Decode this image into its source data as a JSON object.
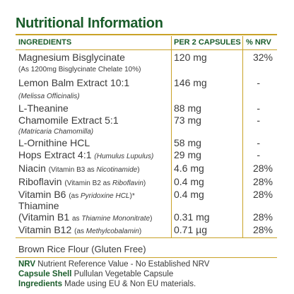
{
  "title": "Nutritional Information",
  "header": {
    "ingredients": "INGREDIENTS",
    "per": "PER 2 CAPSULES",
    "nrv": "% NRV"
  },
  "rows": [
    {
      "name": "Magnesium Bisglycinate",
      "sub": "(As 1200mg Bisglycinate Chelate 10%)",
      "amount": "120 mg",
      "nrv": "32%"
    },
    {
      "name": "Lemon Balm Extract 10:1",
      "sub": "(Melissa Officinalis)",
      "amount": "146 mg",
      "nrv": "-"
    },
    {
      "name": "L-Theanine",
      "amount": "88 mg",
      "nrv": "-"
    },
    {
      "name": "Chamomile Extract 5:1",
      "sub": "(Matricaria Chamomilla)",
      "amount": "73 mg",
      "nrv": "-"
    },
    {
      "name": "L-Ornithine HCL",
      "amount": "58 mg",
      "nrv": "-"
    },
    {
      "name": "Hops Extract 4:1",
      "note": "(Humulus Lupulus)",
      "amount": "29 mg",
      "nrv": "-"
    },
    {
      "name": "Niacin",
      "note": "(Vitamin B3 as ",
      "note_it": "Nicotinamide",
      "note_end": ")",
      "amount": "4.6 mg",
      "nrv": "28%"
    },
    {
      "name": "Riboflavin",
      "note": "(Vitamin B2 as ",
      "note_it": "Riboflavin",
      "note_end": ")",
      "amount": "0.4 mg",
      "nrv": "28%"
    },
    {
      "name": "Vitamin B6",
      "note": "(as ",
      "note_it": "Pyridoxine HCL",
      "note_end": ")*",
      "amount": "0.4 mg",
      "nrv": "28%"
    },
    {
      "name": "Thiamine"
    },
    {
      "name": "(Vitamin B1",
      "note": "as ",
      "note_it": "Thiamine Mononitrate",
      "note_end": ")",
      "amount": "0.31 mg",
      "nrv": "28%"
    },
    {
      "name": "Vitamin B12",
      "note": "(as ",
      "note_it": "Methylcobalamin",
      "note_end": ")",
      "amount": "0.71 µg",
      "nrv": "28%"
    }
  ],
  "brown": "Brown Rice Flour (Gluten Free)",
  "footer": [
    {
      "key": "NRV",
      "text": " Nutrient Reference Value - No Established NRV"
    },
    {
      "key": "Capsule Shell",
      "text": " Pullulan Vegetable Capsule"
    },
    {
      "key": "Ingredients",
      "text": " Made using EU & Non EU materials."
    }
  ],
  "colors": {
    "heading": "#1a5c2a",
    "rule": "#c9a227",
    "text": "#3a3a3a"
  }
}
